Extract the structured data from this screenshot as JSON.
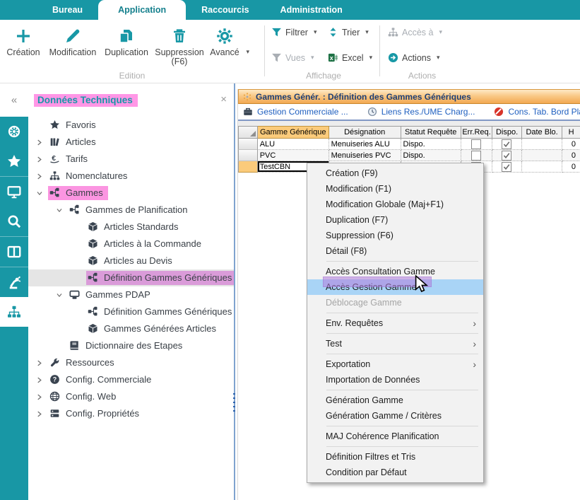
{
  "menubar": {
    "tabs": [
      {
        "label": "Bureau",
        "active": false
      },
      {
        "label": "Application",
        "active": true
      },
      {
        "label": "Raccourcis",
        "active": false
      },
      {
        "label": "Administration",
        "active": false
      }
    ]
  },
  "ribbon": {
    "edition": {
      "group_label": "Edition",
      "creation": "Création",
      "modification": "Modification",
      "duplication": "Duplication",
      "suppression": "Suppression",
      "suppression_shortcut": "(F6)",
      "avance": "Avancé"
    },
    "affichage": {
      "group_label": "Affichage",
      "filtrer": "Filtrer",
      "trier": "Trier",
      "vues": "Vues",
      "excel": "Excel"
    },
    "actions_group": {
      "group_label": "Actions",
      "acces_a": "Accès à",
      "actions": "Actions"
    },
    "caret_glyph": "▾"
  },
  "sidebar": {
    "collapse_label": "«",
    "icons": [
      "wheel",
      "star",
      "monitor",
      "search",
      "layout",
      "robot-arm",
      "org-chart"
    ],
    "active_icon": "org-chart"
  },
  "explorer": {
    "title": "Données Techniques",
    "close_label": "×",
    "items": [
      {
        "label": "Favoris",
        "level": 1,
        "icon": "star"
      },
      {
        "label": "Articles",
        "level": 1,
        "icon": "books",
        "chevron": "collapsed"
      },
      {
        "label": "Tarifs",
        "level": 1,
        "icon": "euro",
        "chevron": "collapsed"
      },
      {
        "label": "Nomenclatures",
        "level": 1,
        "icon": "orgchart",
        "chevron": "collapsed"
      },
      {
        "label": "Gammes",
        "level": 1,
        "icon": "routing",
        "chevron": "expanded",
        "hl": "pink"
      },
      {
        "label": "Gammes de Planification",
        "level": 2,
        "icon": "routing",
        "chevron": "expanded"
      },
      {
        "label": "Articles Standards",
        "level": 3,
        "icon": "cube"
      },
      {
        "label": "Articles à la Commande",
        "level": 3,
        "icon": "cube"
      },
      {
        "label": "Articles au Devis",
        "level": 3,
        "icon": "cube"
      },
      {
        "label": "Définition Gammes Génériques",
        "level": 3,
        "icon": "routing",
        "selected": true,
        "hl": "purple"
      },
      {
        "label": "Gammes PDAP",
        "level": 2,
        "icon": "pdap",
        "chevron": "expanded"
      },
      {
        "label": "Définition Gammes Génériques",
        "level": 3,
        "icon": "routing"
      },
      {
        "label": "Gammes Générées Articles",
        "level": 3,
        "icon": "cube"
      },
      {
        "label": "Dictionnaire des Etapes",
        "level": 2,
        "icon": "book"
      },
      {
        "label": "Ressources",
        "level": 1,
        "icon": "wrench",
        "chevron": "collapsed"
      },
      {
        "label": "Config. Commerciale",
        "level": 1,
        "icon": "question",
        "chevron": "collapsed"
      },
      {
        "label": "Config. Web",
        "level": 1,
        "icon": "globe",
        "chevron": "collapsed"
      },
      {
        "label": "Config. Propriétés",
        "level": 1,
        "icon": "server",
        "chevron": "collapsed"
      }
    ]
  },
  "window": {
    "title": "Gammes Génér. : Définition des Gammes Génériques",
    "tabs": [
      {
        "icon": "briefcase",
        "label": "Gestion Commerciale ..."
      },
      {
        "icon": "clock",
        "label": "Liens Res./UME Charg..."
      },
      {
        "icon": "no-entry",
        "label": "Cons. Tab. Bord Planif...."
      }
    ],
    "table": {
      "columns": [
        "Gamme Générique",
        "Désignation",
        "Statut Requête",
        "Err.Req.",
        "Dispo.",
        "Date Blo.",
        "H"
      ],
      "rows": [
        {
          "gamme": "ALU",
          "designation": "Menuiseries ALU",
          "statut": "Dispo.",
          "err": false,
          "dispo": true,
          "date_blo": "",
          "h": "0"
        },
        {
          "gamme": "PVC",
          "designation": "Menuiseries PVC",
          "statut": "Dispo.",
          "err": false,
          "dispo": true,
          "date_blo": "",
          "h": "0"
        },
        {
          "gamme": "TestCBN",
          "designation": "",
          "statut": "",
          "err": false,
          "dispo": true,
          "date_blo": "",
          "h": "0",
          "selected_cell": true,
          "selected_row": true
        }
      ]
    }
  },
  "context_menu": {
    "items": [
      {
        "label": "Création (F9)"
      },
      {
        "label": "Modification (F1)"
      },
      {
        "label": "Modification Globale (Maj+F1)"
      },
      {
        "label": "Duplication (F7)"
      },
      {
        "label": "Suppression (F6)"
      },
      {
        "label": "Détail (F8)"
      },
      {
        "sep": true
      },
      {
        "label": "Accès Consultation Gamme"
      },
      {
        "label": "Accès Gestion Gamme",
        "highlighted": true,
        "annotated": true
      },
      {
        "label": "Déblocage Gamme",
        "disabled": true
      },
      {
        "sep": true
      },
      {
        "label": "Env. Requêtes",
        "submenu": true
      },
      {
        "sep": true
      },
      {
        "label": "Test",
        "submenu": true
      },
      {
        "sep": true
      },
      {
        "label": "Exportation",
        "submenu": true
      },
      {
        "label": "Importation de Données"
      },
      {
        "sep": true
      },
      {
        "label": "Génération Gamme"
      },
      {
        "label": "Génération Gamme / Critères"
      },
      {
        "sep": true
      },
      {
        "label": "MAJ Cohérence Planification"
      },
      {
        "sep": true
      },
      {
        "label": "Définition Filtres et Tris"
      },
      {
        "label": "Condition par Défaut"
      }
    ]
  },
  "colors": {
    "teal": "#1897A5",
    "annotation_pink": "#FB95E1",
    "annotation_purple_tree": "#DA9BD9",
    "annotation_purple_menu": "#B27EDD",
    "menu_highlight_blue": "#A9D4F6",
    "titlebar_orange": "#F2A851",
    "sorted_header_orange": "#FBCB7B",
    "tab_link_blue": "#1F5FBF"
  }
}
